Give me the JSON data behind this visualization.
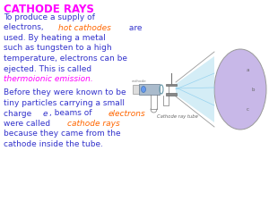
{
  "title": "CATHODE RAYS",
  "title_color": "#FF00FF",
  "background_color": "#FFFFFF",
  "text_color": "#3333CC",
  "highlight_color_orange": "#FF6600",
  "highlight_color_pink": "#FF00FF",
  "lines_p1": [
    [
      [
        "To produce a supply of",
        "blue",
        false
      ]
    ],
    [
      [
        "electrons, ",
        "blue",
        false
      ],
      [
        "hot cathodes",
        "orange",
        true
      ],
      [
        " are",
        "blue",
        false
      ]
    ],
    [
      [
        "used. By heating a metal",
        "blue",
        false
      ]
    ],
    [
      [
        "such as tungsten to a high",
        "blue",
        false
      ]
    ],
    [
      [
        "temperature, electrons can be",
        "blue",
        false
      ]
    ],
    [
      [
        "ejected. This is called",
        "blue",
        false
      ]
    ],
    [
      [
        "thermoionic emission.",
        "pink",
        true
      ]
    ]
  ],
  "lines_p2": [
    [
      [
        "Before they were known to be",
        "blue",
        false
      ]
    ],
    [
      [
        "tiny particles carrying a small",
        "blue",
        false
      ]
    ],
    [
      [
        "charge ",
        "blue",
        false
      ],
      [
        "e",
        "blue",
        true
      ],
      [
        ", beams of ",
        "blue",
        false
      ],
      [
        "electrons",
        "orange",
        true
      ]
    ],
    [
      [
        "were called ",
        "blue",
        false
      ],
      [
        "cathode rays",
        "orange",
        true
      ]
    ],
    [
      [
        "because they came from the",
        "blue",
        false
      ]
    ],
    [
      [
        "cathode inside the tube.",
        "blue",
        false
      ]
    ]
  ],
  "diagram_label": "Cathode ray tube",
  "fontsize": 6.5,
  "title_fontsize": 8.5
}
